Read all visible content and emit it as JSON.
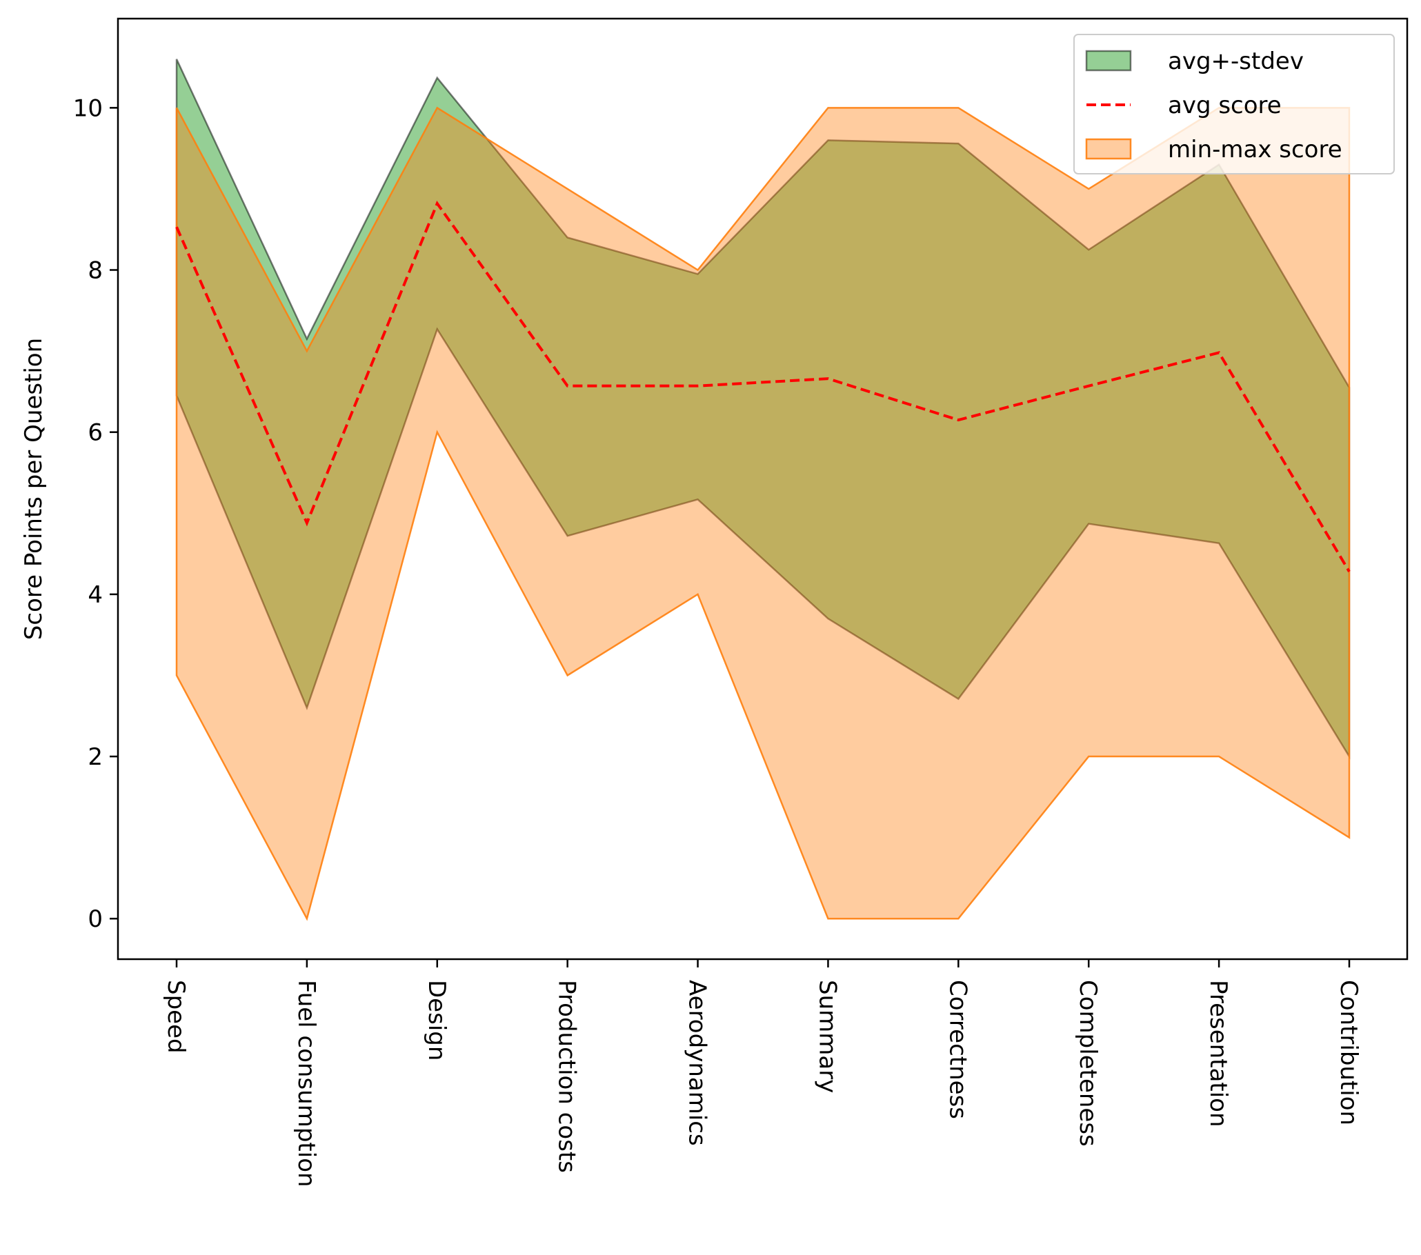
{
  "chart_data": {
    "type": "area",
    "ylabel": "Score Points per Question",
    "ylim": [
      -0.5,
      11.1
    ],
    "yticks": [
      0,
      2,
      4,
      6,
      8,
      10
    ],
    "grid": false,
    "legend_position": "top-right",
    "categories": [
      "Speed",
      "Fuel consumption",
      "Design",
      "Production costs",
      "Aerodynamics",
      "Summary",
      "Correctness",
      "Completeness",
      "Presentation",
      "Contribution"
    ],
    "series": [
      {
        "name": "avg+-stdev",
        "kind": "band",
        "color": "#2ca02c",
        "upper": [
          10.6,
          7.15,
          10.37,
          8.4,
          7.95,
          9.6,
          9.56,
          8.25,
          9.3,
          6.55
        ],
        "lower": [
          6.45,
          2.6,
          7.27,
          4.72,
          5.17,
          3.7,
          2.71,
          4.87,
          4.63,
          2.0
        ]
      },
      {
        "name": "avg score",
        "kind": "line",
        "color": "#ff0000",
        "values": [
          8.53,
          4.88,
          8.82,
          6.57,
          6.57,
          6.66,
          6.15,
          6.57,
          6.98,
          4.28
        ]
      },
      {
        "name": "min-max score",
        "kind": "band",
        "color": "#ff7f0e",
        "upper": [
          10,
          7,
          10,
          9,
          8,
          10,
          10,
          9,
          10,
          10
        ],
        "lower": [
          3,
          0,
          6,
          3,
          4,
          0,
          0,
          2,
          2,
          1
        ]
      }
    ]
  },
  "colors": {
    "std_fill": "#2ca02c",
    "minmax_fill": "#ff7f0e",
    "avg_line": "#ff0000"
  }
}
